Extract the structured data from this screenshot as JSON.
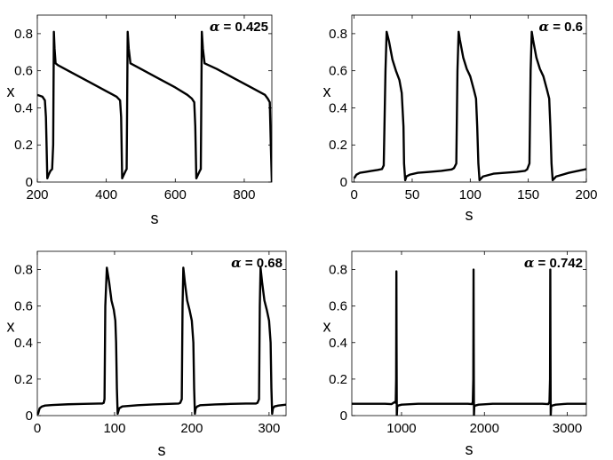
{
  "chart_data": [
    {
      "type": "line",
      "title": "",
      "xlabel": "s",
      "ylabel": "x",
      "annotation": "α = 0.425",
      "xlim": [
        200,
        880
      ],
      "ylim": [
        0,
        0.9
      ],
      "xticks": [
        200,
        400,
        600,
        800
      ],
      "yticks": [
        0,
        0.2,
        0.4,
        0.6,
        0.8
      ],
      "ytick_labels": [
        "0",
        "0.2",
        "0.4",
        "0.6",
        "0.8"
      ],
      "series": [
        {
          "name": "",
          "x": [
            200,
            215,
            222,
            225,
            229,
            233,
            238,
            243,
            246,
            248,
            250,
            253,
            260,
            300,
            350,
            400,
            430,
            440,
            443,
            446,
            451,
            456,
            459,
            462,
            465,
            470,
            500,
            550,
            600,
            635,
            648,
            655,
            658,
            661,
            666,
            671,
            674,
            677,
            680,
            685,
            720,
            770,
            820,
            860,
            868,
            874,
            877,
            880
          ],
          "y": [
            0.47,
            0.46,
            0.44,
            0.35,
            0.02,
            0.04,
            0.06,
            0.07,
            0.2,
            0.81,
            0.72,
            0.64,
            0.63,
            0.59,
            0.54,
            0.49,
            0.46,
            0.44,
            0.35,
            0.02,
            0.04,
            0.06,
            0.07,
            0.81,
            0.72,
            0.64,
            0.61,
            0.56,
            0.51,
            0.47,
            0.45,
            0.43,
            0.3,
            0.02,
            0.04,
            0.06,
            0.07,
            0.81,
            0.72,
            0.64,
            0.61,
            0.56,
            0.51,
            0.47,
            0.45,
            0.43,
            0.2,
            0.0
          ]
        }
      ]
    },
    {
      "type": "line",
      "title": "",
      "xlabel": "s",
      "ylabel": "x",
      "annotation": "α = 0.6",
      "xlim": [
        -2,
        200
      ],
      "ylim": [
        0,
        0.9
      ],
      "xticks": [
        0,
        50,
        100,
        150,
        200
      ],
      "yticks": [
        0,
        0.2,
        0.4,
        0.6,
        0.8
      ],
      "ytick_labels": [
        "0",
        "0.2",
        "0.4",
        "0.6",
        "0.8"
      ],
      "series": [
        {
          "name": "",
          "x": [
            0,
            2,
            5,
            10,
            15,
            20,
            24,
            25.5,
            27,
            28,
            30,
            33,
            36,
            39,
            41,
            42.5,
            43,
            44,
            45,
            48,
            55,
            65,
            75,
            84,
            86,
            88,
            89,
            90,
            91,
            94,
            97,
            100,
            103,
            105,
            106,
            107,
            108,
            111,
            120,
            130,
            140,
            147,
            149,
            151,
            152,
            153,
            154,
            157,
            160,
            163,
            166,
            168,
            169,
            170,
            171,
            174,
            185,
            200
          ],
          "y": [
            0.02,
            0.04,
            0.05,
            0.055,
            0.06,
            0.065,
            0.07,
            0.09,
            0.6,
            0.81,
            0.76,
            0.66,
            0.6,
            0.55,
            0.48,
            0.3,
            0.1,
            0.01,
            0.03,
            0.04,
            0.05,
            0.055,
            0.06,
            0.068,
            0.075,
            0.1,
            0.6,
            0.81,
            0.77,
            0.67,
            0.61,
            0.57,
            0.5,
            0.45,
            0.3,
            0.1,
            0.01,
            0.03,
            0.045,
            0.05,
            0.055,
            0.06,
            0.068,
            0.1,
            0.6,
            0.81,
            0.77,
            0.67,
            0.61,
            0.57,
            0.5,
            0.45,
            0.3,
            0.1,
            0.01,
            0.03,
            0.05,
            0.07
          ]
        }
      ]
    },
    {
      "type": "line",
      "title": "",
      "xlabel": "s",
      "ylabel": "x",
      "annotation": "α = 0.68",
      "xlim": [
        0,
        322
      ],
      "ylim": [
        0,
        0.9
      ],
      "xticks": [
        0,
        100,
        200,
        300
      ],
      "yticks": [
        0,
        0.2,
        0.4,
        0.6,
        0.8
      ],
      "ytick_labels": [
        "0",
        "0.2",
        "0.4",
        "0.6",
        "0.8"
      ],
      "series": [
        {
          "name": "",
          "x": [
            0,
            1,
            3,
            6,
            10,
            20,
            40,
            60,
            80,
            84,
            86,
            87,
            88,
            90,
            93,
            96,
            99,
            101,
            102,
            103,
            104,
            106,
            110,
            130,
            150,
            170,
            183,
            185,
            187,
            188,
            189,
            191,
            194,
            197,
            200,
            202,
            203,
            204,
            205,
            207,
            211,
            230,
            250,
            270,
            283,
            285,
            287,
            288,
            289,
            291,
            294,
            297,
            300,
            302,
            303,
            304,
            305,
            307,
            312,
            322
          ],
          "y": [
            0.02,
            0.01,
            0.04,
            0.05,
            0.055,
            0.058,
            0.062,
            0.064,
            0.066,
            0.066,
            0.07,
            0.09,
            0.6,
            0.81,
            0.73,
            0.63,
            0.58,
            0.52,
            0.4,
            0.15,
            0.01,
            0.04,
            0.05,
            0.057,
            0.061,
            0.064,
            0.066,
            0.07,
            0.09,
            0.6,
            0.81,
            0.73,
            0.63,
            0.58,
            0.52,
            0.4,
            0.15,
            0.01,
            0.04,
            0.05,
            0.057,
            0.061,
            0.064,
            0.066,
            0.066,
            0.07,
            0.09,
            0.6,
            0.81,
            0.73,
            0.63,
            0.58,
            0.52,
            0.4,
            0.15,
            0.01,
            0.04,
            0.05,
            0.055,
            0.06
          ]
        }
      ]
    },
    {
      "type": "line",
      "title": "",
      "xlabel": "s",
      "ylabel": "x",
      "annotation": "α = 0.742",
      "xlim": [
        400,
        3230
      ],
      "ylim": [
        0,
        0.9
      ],
      "xticks": [
        1000,
        2000,
        3000
      ],
      "yticks": [
        0,
        0.2,
        0.4,
        0.6,
        0.8
      ],
      "ytick_labels": [
        "0",
        "0.2",
        "0.4",
        "0.6",
        "0.8"
      ],
      "series": [
        {
          "name": "",
          "x": [
            400,
            800,
            880,
            920,
            930,
            935,
            938,
            940,
            943,
            948,
            960,
            1000,
            1200,
            1500,
            1800,
            1850,
            1860,
            1866,
            1869,
            1871,
            1874,
            1878,
            1890,
            1930,
            2100,
            2400,
            2700,
            2770,
            2785,
            2792,
            2795,
            2797,
            2800,
            2805,
            2820,
            2860,
            3000,
            3230
          ],
          "y": [
            0.065,
            0.065,
            0.063,
            0.075,
            0.07,
            0.2,
            0.79,
            0.4,
            0.0,
            0.05,
            0.055,
            0.06,
            0.065,
            0.065,
            0.065,
            0.063,
            0.075,
            0.2,
            0.8,
            0.4,
            0.0,
            0.05,
            0.055,
            0.06,
            0.065,
            0.065,
            0.065,
            0.063,
            0.075,
            0.2,
            0.8,
            0.4,
            0.0,
            0.05,
            0.055,
            0.06,
            0.065,
            0.065
          ]
        }
      ]
    }
  ]
}
